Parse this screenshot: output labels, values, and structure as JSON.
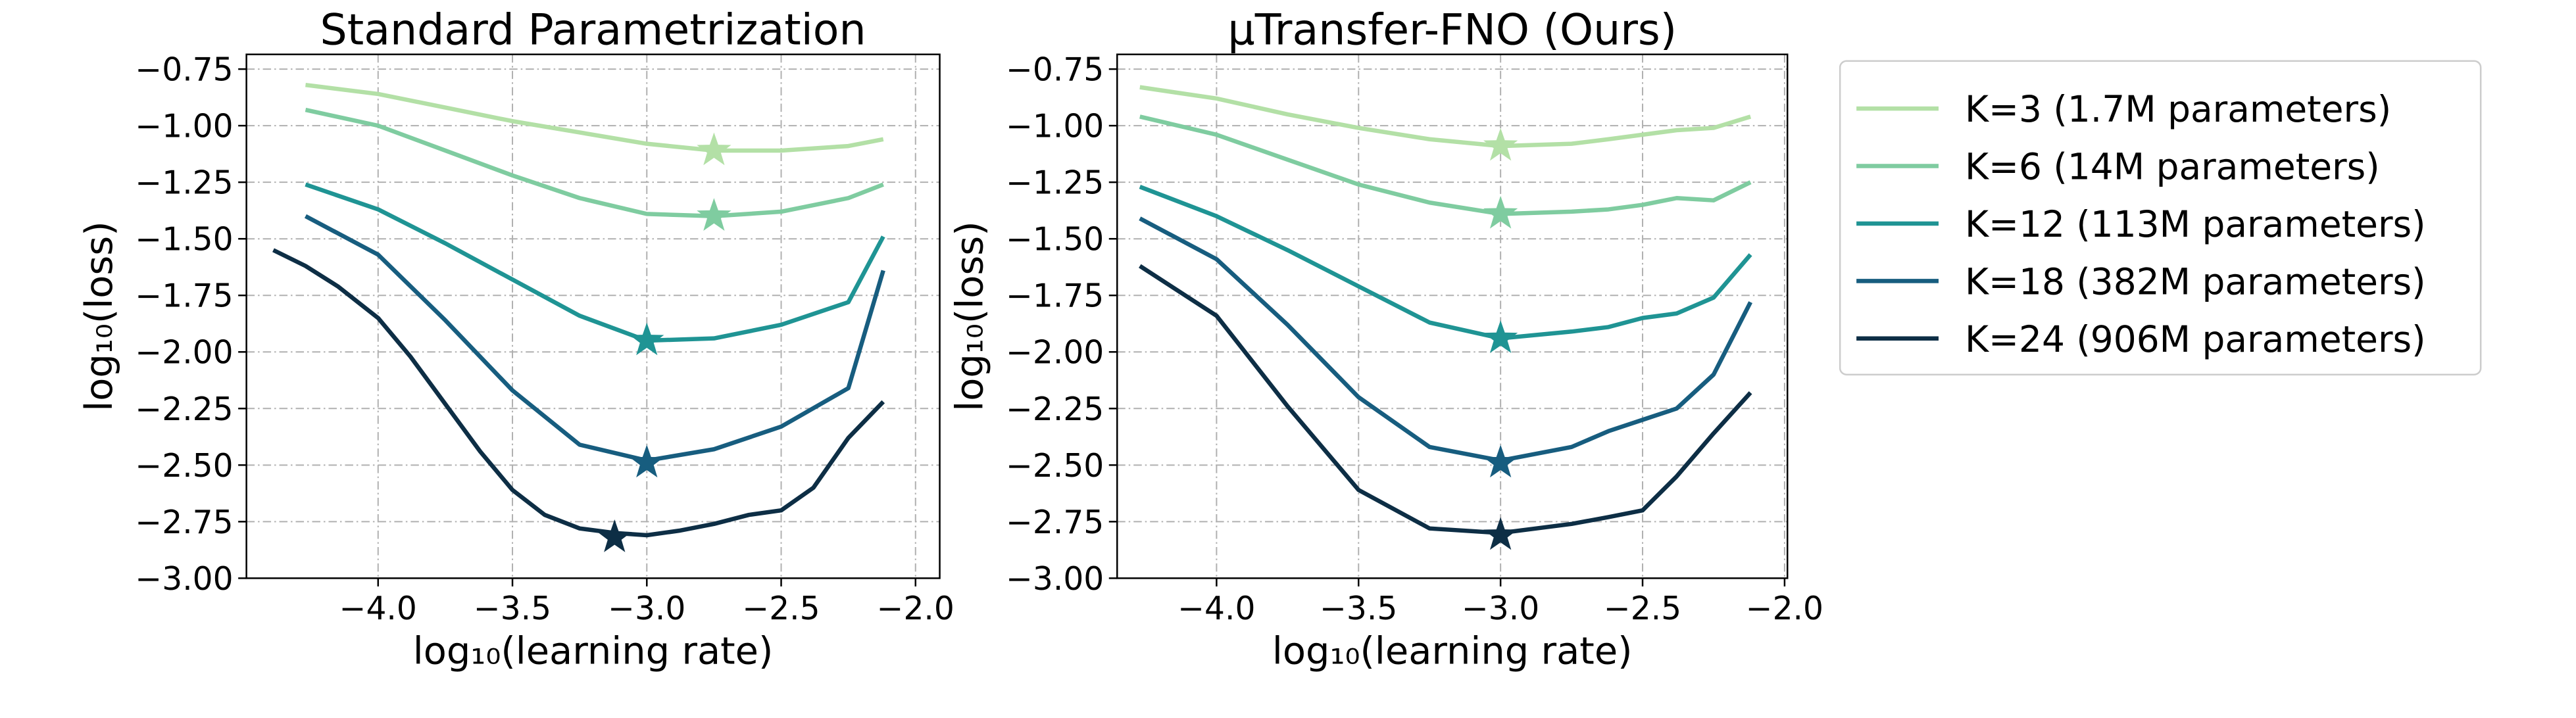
{
  "chart_data": [
    {
      "type": "line",
      "title": "Standard Parametrization",
      "xlabel": "log₁₀(learning rate)",
      "ylabel": "log₁₀(loss)",
      "xlim": [
        -4.49,
        -1.91
      ],
      "ylim": [
        -3.0,
        -0.685
      ],
      "grid": true,
      "xticks": [
        {
          "value": -4.0,
          "label": "−4.0"
        },
        {
          "value": -3.5,
          "label": "−3.5"
        },
        {
          "value": -3.0,
          "label": "−3.0"
        },
        {
          "value": -2.5,
          "label": "−2.5"
        },
        {
          "value": -2.0,
          "label": "−2.0"
        }
      ],
      "yticks": [
        {
          "value": -0.75,
          "label": "−0.75"
        },
        {
          "value": -1.0,
          "label": "−1.00"
        },
        {
          "value": -1.25,
          "label": "−1.25"
        },
        {
          "value": -1.5,
          "label": "−1.50"
        },
        {
          "value": -1.75,
          "label": "−1.75"
        },
        {
          "value": -2.0,
          "label": "−2.00"
        },
        {
          "value": -2.25,
          "label": "−2.25"
        },
        {
          "value": -2.5,
          "label": "−2.50"
        },
        {
          "value": -2.75,
          "label": "−2.75"
        },
        {
          "value": -3.0,
          "label": "−3.00"
        }
      ],
      "series": [
        {
          "color": "#b3e0a6",
          "x": [
            -4.27,
            -4.0,
            -3.75,
            -3.5,
            -3.25,
            -3.0,
            -2.75,
            -2.5,
            -2.25,
            -2.12
          ],
          "values": [
            -0.82,
            -0.86,
            -0.92,
            -0.98,
            -1.03,
            -1.08,
            -1.11,
            -1.11,
            -1.09,
            -1.06
          ],
          "optimum": {
            "x": -2.75,
            "value": -1.11
          }
        },
        {
          "color": "#7fcca0",
          "x": [
            -4.27,
            -4.0,
            -3.75,
            -3.5,
            -3.25,
            -3.0,
            -2.75,
            -2.5,
            -2.25,
            -2.12
          ],
          "values": [
            -0.93,
            -1.0,
            -1.11,
            -1.22,
            -1.32,
            -1.39,
            -1.4,
            -1.38,
            -1.32,
            -1.26
          ],
          "optimum": {
            "x": -2.75,
            "value": -1.4
          }
        },
        {
          "color": "#1f9494",
          "x": [
            -4.27,
            -4.0,
            -3.75,
            -3.5,
            -3.25,
            -3.0,
            -2.75,
            -2.5,
            -2.25,
            -2.12
          ],
          "values": [
            -1.26,
            -1.37,
            -1.52,
            -1.68,
            -1.84,
            -1.95,
            -1.94,
            -1.88,
            -1.78,
            -1.49
          ],
          "optimum": {
            "x": -3.0,
            "value": -1.95
          }
        },
        {
          "color": "#175d7f",
          "x": [
            -4.27,
            -4.0,
            -3.75,
            -3.5,
            -3.25,
            -3.0,
            -2.75,
            -2.5,
            -2.25,
            -2.12
          ],
          "values": [
            -1.4,
            -1.57,
            -1.86,
            -2.17,
            -2.41,
            -2.48,
            -2.43,
            -2.33,
            -2.16,
            -1.64
          ],
          "optimum": {
            "x": -3.0,
            "value": -2.49
          }
        },
        {
          "color": "#0d2e45",
          "x": [
            -4.39,
            -4.27,
            -4.15,
            -4.0,
            -3.88,
            -3.75,
            -3.62,
            -3.5,
            -3.38,
            -3.25,
            -3.12,
            -3.0,
            -2.88,
            -2.75,
            -2.62,
            -2.5,
            -2.38,
            -2.25,
            -2.12
          ],
          "values": [
            -1.55,
            -1.62,
            -1.71,
            -1.85,
            -2.02,
            -2.23,
            -2.44,
            -2.61,
            -2.72,
            -2.78,
            -2.8,
            -2.81,
            -2.79,
            -2.76,
            -2.72,
            -2.7,
            -2.6,
            -2.38,
            -2.22
          ],
          "optimum": {
            "x": -3.12,
            "value": -2.82
          }
        }
      ]
    },
    {
      "type": "line",
      "title": "μTransfer-FNO (Ours)",
      "xlabel": "log₁₀(learning rate)",
      "ylabel": "log₁₀(loss)",
      "xlim": [
        -4.35,
        -1.99
      ],
      "ylim": [
        -3.0,
        -0.685
      ],
      "grid": true,
      "xticks": [
        {
          "value": -4.0,
          "label": "−4.0"
        },
        {
          "value": -3.5,
          "label": "−3.5"
        },
        {
          "value": -3.0,
          "label": "−3.0"
        },
        {
          "value": -2.5,
          "label": "−2.5"
        },
        {
          "value": -2.0,
          "label": "−2.0"
        }
      ],
      "yticks": [
        {
          "value": -0.75,
          "label": "−0.75"
        },
        {
          "value": -1.0,
          "label": "−1.00"
        },
        {
          "value": -1.25,
          "label": "−1.25"
        },
        {
          "value": -1.5,
          "label": "−1.50"
        },
        {
          "value": -1.75,
          "label": "−1.75"
        },
        {
          "value": -2.0,
          "label": "−2.00"
        },
        {
          "value": -2.25,
          "label": "−2.25"
        },
        {
          "value": -2.5,
          "label": "−2.50"
        },
        {
          "value": -2.75,
          "label": "−2.75"
        },
        {
          "value": -3.0,
          "label": "−3.00"
        }
      ],
      "legend": "outside-right",
      "series": [
        {
          "name": "K=3 (1.7M parameters)",
          "color": "#b3e0a6",
          "x": [
            -4.27,
            -4.0,
            -3.75,
            -3.5,
            -3.25,
            -3.0,
            -2.75,
            -2.62,
            -2.5,
            -2.38,
            -2.25,
            -2.12
          ],
          "values": [
            -0.83,
            -0.88,
            -0.95,
            -1.01,
            -1.06,
            -1.09,
            -1.08,
            -1.06,
            -1.04,
            -1.02,
            -1.01,
            -0.96
          ],
          "optimum": {
            "x": -3.0,
            "value": -1.09
          }
        },
        {
          "name": "K=6 (14M parameters)",
          "color": "#7fcca0",
          "x": [
            -4.27,
            -4.0,
            -3.75,
            -3.5,
            -3.25,
            -3.0,
            -2.75,
            -2.62,
            -2.5,
            -2.38,
            -2.25,
            -2.12
          ],
          "values": [
            -0.96,
            -1.04,
            -1.15,
            -1.26,
            -1.34,
            -1.39,
            -1.38,
            -1.37,
            -1.35,
            -1.32,
            -1.33,
            -1.25
          ],
          "optimum": {
            "x": -3.0,
            "value": -1.39
          }
        },
        {
          "name": "K=12 (113M parameters)",
          "color": "#1f9494",
          "x": [
            -4.27,
            -4.0,
            -3.75,
            -3.5,
            -3.25,
            -3.0,
            -2.75,
            -2.62,
            -2.5,
            -2.38,
            -2.25,
            -2.12
          ],
          "values": [
            -1.27,
            -1.4,
            -1.55,
            -1.71,
            -1.87,
            -1.94,
            -1.91,
            -1.89,
            -1.85,
            -1.83,
            -1.76,
            -1.57
          ],
          "optimum": {
            "x": -3.0,
            "value": -1.94
          }
        },
        {
          "name": "K=18 (382M parameters)",
          "color": "#175d7f",
          "x": [
            -4.27,
            -4.0,
            -3.75,
            -3.5,
            -3.25,
            -3.0,
            -2.75,
            -2.62,
            -2.5,
            -2.38,
            -2.25,
            -2.12
          ],
          "values": [
            -1.41,
            -1.59,
            -1.88,
            -2.2,
            -2.42,
            -2.48,
            -2.42,
            -2.35,
            -2.3,
            -2.25,
            -2.1,
            -1.78
          ],
          "optimum": {
            "x": -3.0,
            "value": -2.49
          }
        },
        {
          "name": "K=24 (906M parameters)",
          "color": "#0d2e45",
          "x": [
            -4.27,
            -4.0,
            -3.75,
            -3.5,
            -3.25,
            -3.0,
            -2.75,
            -2.62,
            -2.5,
            -2.38,
            -2.25,
            -2.12
          ],
          "values": [
            -1.62,
            -1.84,
            -2.24,
            -2.61,
            -2.78,
            -2.8,
            -2.76,
            -2.73,
            -2.7,
            -2.55,
            -2.36,
            -2.18
          ],
          "optimum": {
            "x": -3.0,
            "value": -2.81
          }
        }
      ]
    }
  ]
}
